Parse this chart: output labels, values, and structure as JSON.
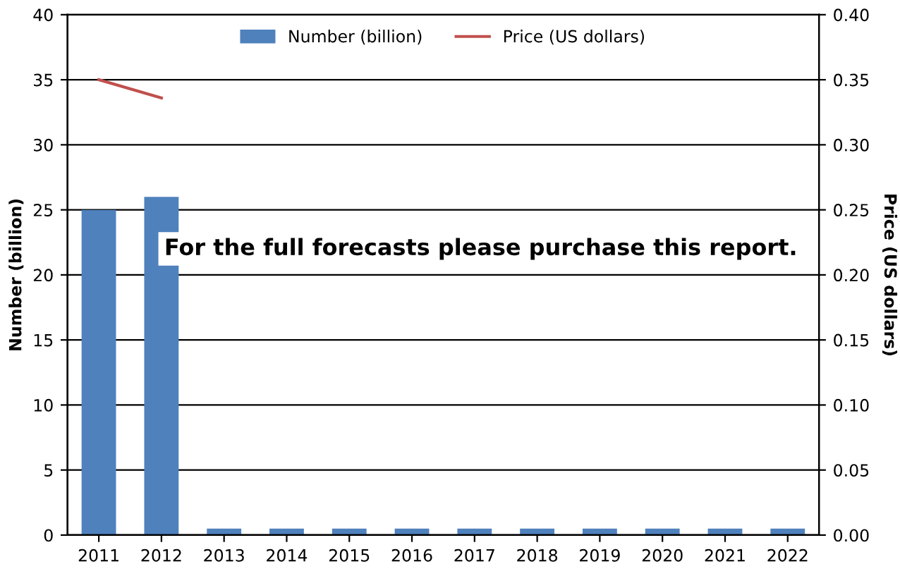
{
  "chart_data": {
    "type": "bar",
    "categories": [
      "2011",
      "2012",
      "2013",
      "2014",
      "2015",
      "2016",
      "2017",
      "2018",
      "2019",
      "2020",
      "2021",
      "2022"
    ],
    "series": [
      {
        "name": "Number (billion)",
        "color": "#4f81bd",
        "values": [
          25,
          26,
          0.5,
          0.5,
          0.5,
          0.5,
          0.5,
          0.5,
          0.5,
          0.5,
          0.5,
          0.5
        ]
      },
      {
        "name": "Price (US dollars)",
        "color": "#c0504d",
        "type": "line",
        "axis": "y2",
        "values": [
          0.35,
          0.336,
          null,
          null,
          null,
          null,
          null,
          null,
          null,
          null,
          null,
          null
        ]
      }
    ],
    "ylabel": "Number (billion)",
    "y2label": "Price (US dollars)",
    "ylim": [
      0,
      40
    ],
    "yticks": [
      0,
      5,
      10,
      15,
      20,
      25,
      30,
      35,
      40
    ],
    "y2lim": [
      0,
      0.4
    ],
    "y2ticks": [
      {
        "value": 0,
        "label": "0.00"
      },
      {
        "value": 0.05,
        "label": "0.05"
      },
      {
        "value": 0.1,
        "label": "0.10"
      },
      {
        "value": 0.15,
        "label": "0.15"
      },
      {
        "value": 0.2,
        "label": "0.20"
      },
      {
        "value": 0.25,
        "label": "0.25"
      },
      {
        "value": 0.3,
        "label": "0.30"
      },
      {
        "value": 0.35,
        "label": "0.35"
      },
      {
        "value": 0.4,
        "label": "0.40"
      }
    ],
    "grid": "y",
    "legend": "top",
    "marker": "none",
    "annotations": [
      "For the full forecasts please purchase this report."
    ]
  }
}
